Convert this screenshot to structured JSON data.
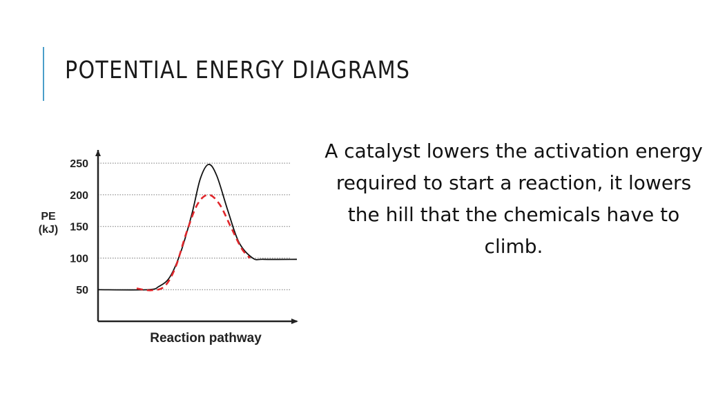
{
  "slide": {
    "title": "POTENTIAL ENERGY DIAGRAMS",
    "body": "A catalyst lowers the activation energy required to start a reaction, it lowers the hill that the chemicals have to climb.",
    "accent_color": "#4a9ec9"
  },
  "chart_data": {
    "type": "line",
    "title": "",
    "xlabel": "Reaction pathway",
    "ylabel": "PE\n(kJ)",
    "ylim": [
      0,
      260
    ],
    "yticks": [
      50,
      100,
      150,
      200,
      250
    ],
    "grid": "horizontal dotted lines at each y tick",
    "series": [
      {
        "color": "#111111",
        "dash": "solid",
        "values": [
          {
            "x": 0,
            "y": 50
          },
          {
            "x": 1.8,
            "y": 50
          },
          {
            "x": 2.2,
            "y": 55
          },
          {
            "x": 2.6,
            "y": 70
          },
          {
            "x": 3.0,
            "y": 110
          },
          {
            "x": 3.4,
            "y": 170
          },
          {
            "x": 3.7,
            "y": 225
          },
          {
            "x": 4.0,
            "y": 248
          },
          {
            "x": 4.3,
            "y": 230
          },
          {
            "x": 4.7,
            "y": 175
          },
          {
            "x": 5.1,
            "y": 125
          },
          {
            "x": 5.6,
            "y": 100
          },
          {
            "x": 6.0,
            "y": 98
          },
          {
            "x": 7.2,
            "y": 98
          }
        ]
      },
      {
        "color": "#e0262b",
        "dash": "dashed",
        "values": [
          {
            "x": 1.4,
            "y": 52
          },
          {
            "x": 1.9,
            "y": 49
          },
          {
            "x": 2.4,
            "y": 55
          },
          {
            "x": 2.8,
            "y": 85
          },
          {
            "x": 3.2,
            "y": 140
          },
          {
            "x": 3.6,
            "y": 185
          },
          {
            "x": 4.0,
            "y": 200
          },
          {
            "x": 4.4,
            "y": 185
          },
          {
            "x": 4.8,
            "y": 150
          },
          {
            "x": 5.2,
            "y": 115
          },
          {
            "x": 5.5,
            "y": 100
          }
        ]
      }
    ]
  }
}
